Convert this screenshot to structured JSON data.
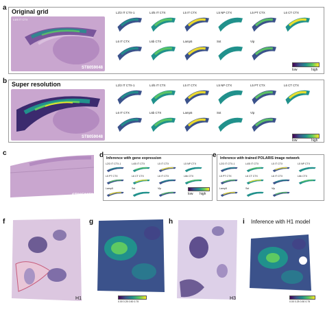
{
  "panels": {
    "a": {
      "letter": "a",
      "title": "Original grid",
      "small_label": "L4/5 IT CTX",
      "sample_id": "ST8059048",
      "cell_titles": [
        "L2/3 IT CTX-1",
        "L4/5 IT CTX",
        "L5 IT CTX",
        "L5 NP CTX",
        "L5 PT CTX",
        "L6 CT CTX",
        "L6 IT CTX",
        "L6b CTX",
        "Lamp5",
        "Sst",
        "Vip"
      ],
      "cbar_low": "low",
      "cbar_high": "high"
    },
    "b": {
      "letter": "b",
      "title": "Super resolution",
      "sample_id": "ST8059048",
      "cell_titles": [
        "L2/3 IT CTX-1",
        "L4/5 IT CTX",
        "L5 IT CTX",
        "L5 NP CTX",
        "L5 PT CTX",
        "L6 CT CTX",
        "L6 IT CTX",
        "L6b CTX",
        "Lamp5",
        "Sst",
        "Vip"
      ],
      "cbar_low": "low",
      "cbar_high": "high"
    },
    "c": {
      "letter": "c",
      "sample_id": "ST8059052"
    },
    "d": {
      "letter": "d",
      "title": "Inference with gene expression",
      "cell_titles": [
        "L2/3 IT CTX-1",
        "L4/5 IT CTX",
        "L5 IT CTX",
        "L5 NP CTX",
        "L5 PT CTX",
        "L6 CT CTX",
        "L6 IT CTX",
        "L6b CTX",
        "Lamp5",
        "Sst",
        "Vip"
      ],
      "cbar_low": "low",
      "cbar_high": "high"
    },
    "e": {
      "letter": "e",
      "title": "Inference with trained POLARIS image network",
      "cell_titles": [
        "L2/3 IT CTX-1",
        "L4/5 IT CTX",
        "L5 IT CTX",
        "L5 NP CTX",
        "L5 PT CTX",
        "L6 CT CTX",
        "L6 IT CTX",
        "L6b CTX",
        "Lamp5",
        "Sst",
        "Vip"
      ]
    },
    "f": {
      "letter": "f",
      "sample_label": "H1"
    },
    "g": {
      "letter": "g",
      "cbar_ticks": "0.00 0.25 0.50 0.75"
    },
    "h": {
      "letter": "h",
      "sample_label": "H3"
    },
    "i": {
      "letter": "i",
      "title": "Inference with H1 model",
      "cbar_ticks": "0.00 0.25 0.50 0.75"
    }
  },
  "colors": {
    "purple": "#440154",
    "blue": "#3b528b",
    "teal": "#21918c",
    "green": "#5ec962",
    "yellow": "#fde725",
    "tissue": "#c9a6cf"
  }
}
